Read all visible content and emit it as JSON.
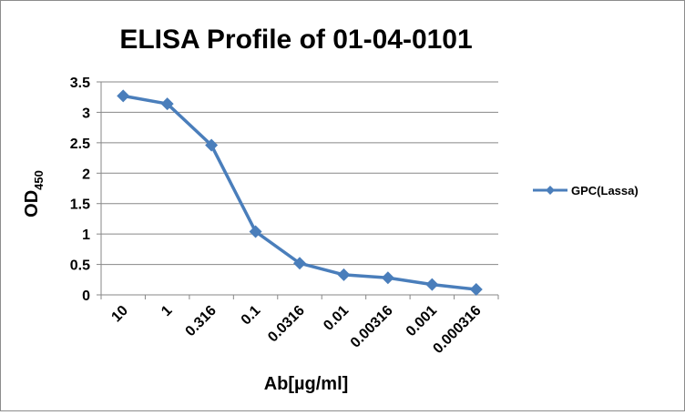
{
  "chart_data": {
    "type": "line",
    "title": "ELISA Profile of 01-04-0101",
    "xlabel": "Ab[µg/ml]",
    "ylabel": "OD",
    "ylabel_subscript": "450",
    "categories": [
      "10",
      "1",
      "0.316",
      "0.1",
      "0.0316",
      "0.01",
      "0.00316",
      "0.001",
      "0.000316"
    ],
    "series": [
      {
        "name": "GPC(Lassa)",
        "color": "#4a7ebb",
        "values": [
          3.27,
          3.14,
          2.46,
          1.04,
          0.52,
          0.33,
          0.28,
          0.17,
          0.09
        ]
      }
    ],
    "ylim": [
      0,
      3.5
    ],
    "yticks": [
      "0",
      "0.5",
      "1",
      "1.5",
      "2",
      "2.5",
      "3",
      "3.5"
    ],
    "grid": "horizontal",
    "legend_position": "right",
    "marker": "diamond"
  }
}
